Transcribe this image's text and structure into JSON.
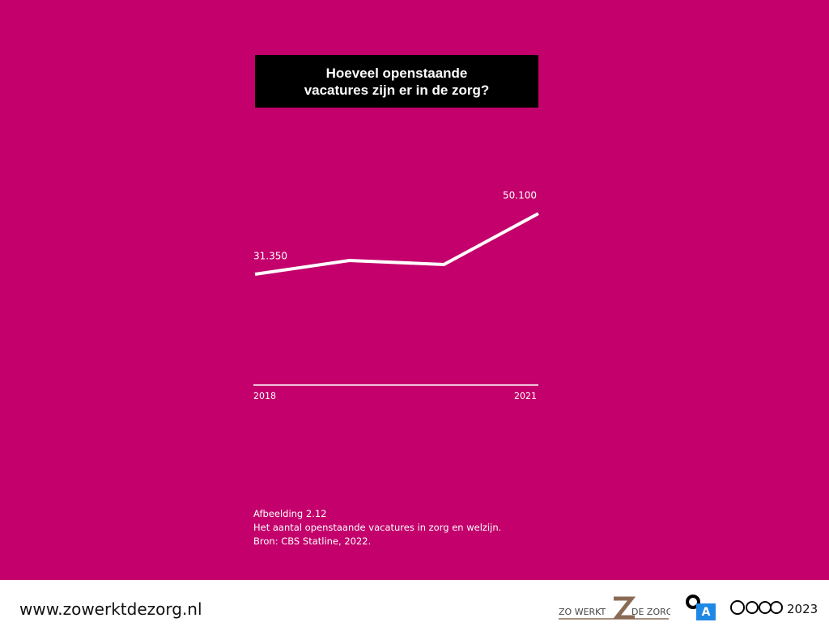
{
  "chart_data": {
    "type": "line",
    "title": "Hoeveel openstaande\nvacatures zijn er in de zorg?",
    "categories": [
      "2018",
      null,
      null,
      "2021"
    ],
    "values": [
      31350,
      35600,
      34350,
      50100
    ],
    "value_labels": [
      "31.350",
      null,
      null,
      "50.100"
    ],
    "color": "#ffffff",
    "caption": [
      "Afbeelding 2.12",
      "Het aantal openstaande vacatures in zorg en welzijn.",
      "Bron: CBS Statline, 2022."
    ]
  },
  "footer": {
    "url": "www.zowerktdezorg.nl",
    "logo_left": "ZO WERKT",
    "logo_right": "DE ZORG",
    "badge": "A",
    "license": [
      "BY",
      "NC",
      "ND"
    ],
    "year": "2023"
  }
}
